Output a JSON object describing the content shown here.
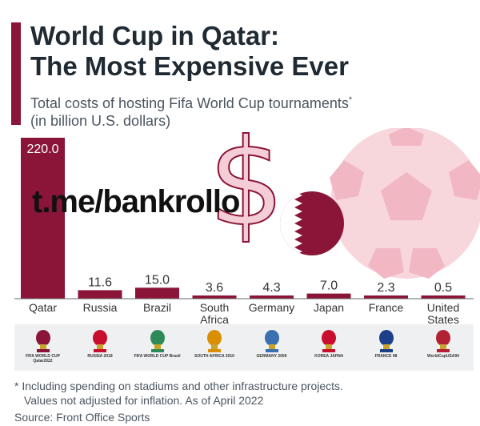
{
  "header": {
    "title_line1": "World Cup in Qatar:",
    "title_line2": "The Most Expensive Ever",
    "subtitle_line1": "Total costs of hosting Fifa World Cup tournaments",
    "subtitle_marker": "*",
    "subtitle_line2": "(in billion U.S. dollars)"
  },
  "watermark": "t.me/bankrollo",
  "colors": {
    "bar": "#8a1538",
    "accent": "#8a1538",
    "decor_pink": "#f7d6dc",
    "axis": "#666666"
  },
  "chart_data": {
    "type": "bar",
    "title": "World Cup in Qatar: The Most Expensive Ever",
    "ylabel": "billion U.S. dollars",
    "categories": [
      "Qatar",
      "Russia",
      "Brazil",
      "South Africa",
      "Germany",
      "Japan",
      "France",
      "United States"
    ],
    "category_lines": [
      [
        "Qatar"
      ],
      [
        "Russia"
      ],
      [
        "Brazil"
      ],
      [
        "South",
        "Africa"
      ],
      [
        "Germany"
      ],
      [
        "Japan"
      ],
      [
        "France"
      ],
      [
        "United",
        "States"
      ]
    ],
    "values": [
      220.0,
      11.6,
      15.0,
      3.6,
      4.3,
      7.0,
      2.3,
      0.5
    ],
    "value_labels": [
      "220.0",
      "11.6",
      "15.0",
      "3.6",
      "4.3",
      "7.0",
      "2.3",
      "0.5"
    ],
    "ylim": [
      0,
      220
    ],
    "grid": false
  },
  "logos": [
    {
      "name": "qatar-2022-logo",
      "text": "FIFA WORLD CUP Qatar2022"
    },
    {
      "name": "russia-2018-logo",
      "text": "RUSSIA 2018"
    },
    {
      "name": "brazil-2014-logo",
      "text": "FIFA WORLD CUP Brasil"
    },
    {
      "name": "south-africa-2010-logo",
      "text": "SOUTH AFRICA 2010"
    },
    {
      "name": "germany-2006-logo",
      "text": "GERMANY 2006"
    },
    {
      "name": "japan-2002-logo",
      "text": "KOREA JAPAN"
    },
    {
      "name": "france-1998-logo",
      "text": "FRANCE 98"
    },
    {
      "name": "usa-1994-logo",
      "text": "WorldCupUSA94"
    }
  ],
  "footnote": {
    "line1": "* Including spending on stadiums and other infrastructure projects.",
    "line2": "Values not adjusted for inflation. As of April 2022"
  },
  "source": "Source: Front Office Sports"
}
